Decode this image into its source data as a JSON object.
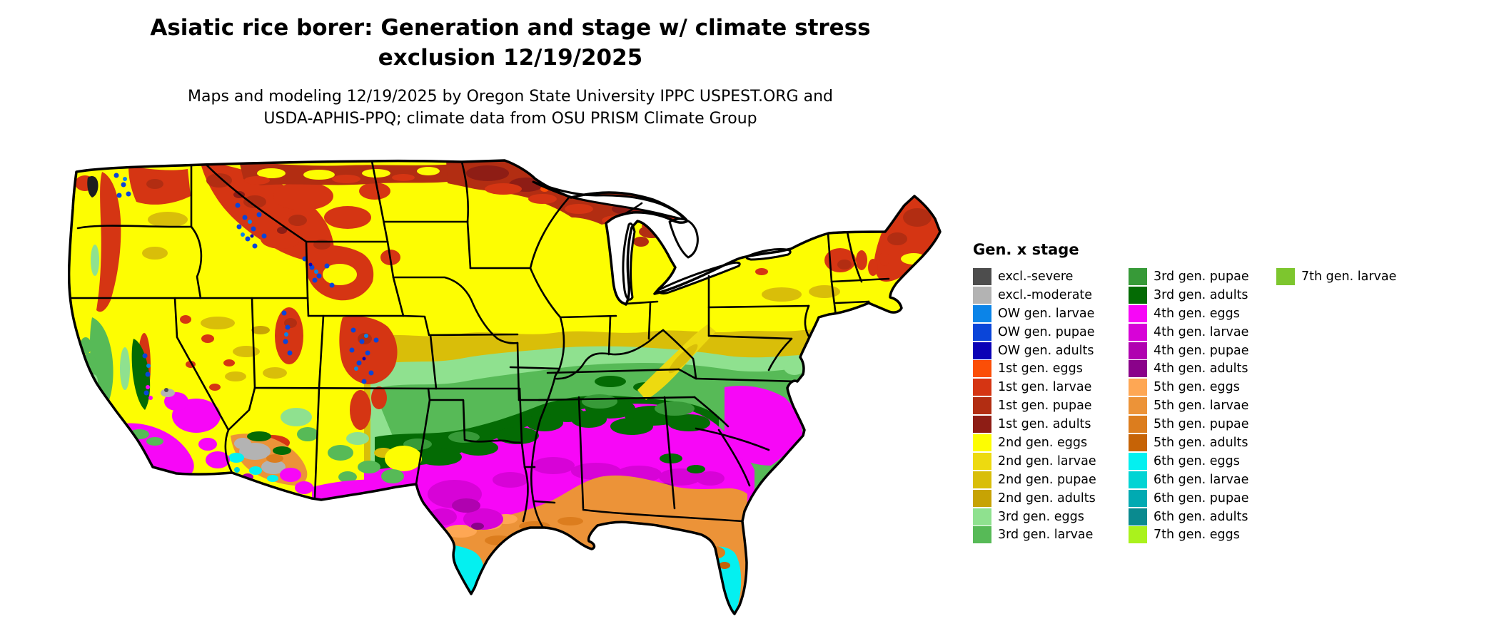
{
  "title": {
    "line1": "Asiatic rice borer: Generation and stage w/ climate stress",
    "line2": "exclusion 12/19/2025"
  },
  "subtitle": {
    "line1": "Maps and modeling 12/19/2025 by Oregon State University IPPC USPEST.ORG and",
    "line2": "USDA-APHIS-PPQ; climate data from OSU PRISM Climate Group"
  },
  "legend": {
    "title": "Gen. x stage",
    "columns": [
      [
        {
          "key": "excl_severe",
          "label": "excl.-severe"
        },
        {
          "key": "excl_moderate",
          "label": "excl.-moderate"
        },
        {
          "key": "ow_larvae",
          "label": "OW gen. larvae"
        },
        {
          "key": "ow_pupae",
          "label": "OW gen. pupae"
        },
        {
          "key": "ow_adults",
          "label": "OW gen. adults"
        },
        {
          "key": "g1_eggs",
          "label": "1st gen. eggs"
        },
        {
          "key": "g1_larvae",
          "label": "1st gen. larvae"
        },
        {
          "key": "g1_pupae",
          "label": "1st gen. pupae"
        },
        {
          "key": "g1_adults",
          "label": "1st gen. adults"
        },
        {
          "key": "g2_eggs",
          "label": "2nd gen. eggs"
        },
        {
          "key": "g2_larvae",
          "label": "2nd gen. larvae"
        },
        {
          "key": "g2_pupae",
          "label": "2nd gen. pupae"
        },
        {
          "key": "g2_adults",
          "label": "2nd gen. adults"
        },
        {
          "key": "g3_eggs",
          "label": "3rd gen. eggs"
        },
        {
          "key": "g3_larvae",
          "label": "3rd gen. larvae"
        }
      ],
      [
        {
          "key": "g3_pupae",
          "label": "3rd gen. pupae"
        },
        {
          "key": "g3_adults",
          "label": "3rd gen. adults"
        },
        {
          "key": "g4_eggs",
          "label": "4th gen. eggs"
        },
        {
          "key": "g4_larvae",
          "label": "4th gen. larvae"
        },
        {
          "key": "g4_pupae",
          "label": "4th gen. pupae"
        },
        {
          "key": "g4_adults",
          "label": "4th gen. adults"
        },
        {
          "key": "g5_eggs",
          "label": "5th gen. eggs"
        },
        {
          "key": "g5_larvae",
          "label": "5th gen. larvae"
        },
        {
          "key": "g5_pupae",
          "label": "5th gen. pupae"
        },
        {
          "key": "g5_adults",
          "label": "5th gen. adults"
        },
        {
          "key": "g6_eggs",
          "label": "6th gen. eggs"
        },
        {
          "key": "g6_larvae",
          "label": "6th gen. larvae"
        },
        {
          "key": "g6_pupae",
          "label": "6th gen. pupae"
        },
        {
          "key": "g6_adults",
          "label": "6th gen. adults"
        },
        {
          "key": "g7_eggs",
          "label": "7th gen. eggs"
        }
      ],
      [
        {
          "key": "g7_larvae",
          "label": "7th gen. larvae"
        }
      ]
    ]
  },
  "colors": {
    "excl_severe": "#4D4D4D",
    "excl_moderate": "#B3B3B3",
    "ow_larvae": "#0B84E8",
    "ow_pupae": "#0A45D9",
    "ow_adults": "#0B02B6",
    "g1_eggs": "#FB4E07",
    "g1_larvae": "#D53513",
    "g1_pupae": "#B22D12",
    "g1_adults": "#8E1D15",
    "g2_eggs": "#FDFD02",
    "g2_larvae": "#EDDA10",
    "g2_pupae": "#D9BE09",
    "g2_adults": "#C7A304",
    "g3_eggs": "#8FE18F",
    "g3_larvae": "#57BA57",
    "g3_pupae": "#379A38",
    "g3_adults": "#046B04",
    "g4_eggs": "#F707F7",
    "g4_larvae": "#D703D7",
    "g4_pupae": "#B002B0",
    "g4_adults": "#8A028A",
    "g5_eggs": "#FEA754",
    "g5_larvae": "#EC9338",
    "g5_pupae": "#DC7D1E",
    "g5_adults": "#C66306",
    "g6_eggs": "#04F0F0",
    "g6_larvae": "#01D4D4",
    "g6_pupae": "#01AAB2",
    "g6_adults": "#0A8A8F",
    "g7_eggs": "#AAF21C",
    "g7_larvae": "#7DC62E",
    "map_outline": "#000000",
    "map_water": "#FFFFFF",
    "map_dark_water": "#1E1E1E"
  }
}
